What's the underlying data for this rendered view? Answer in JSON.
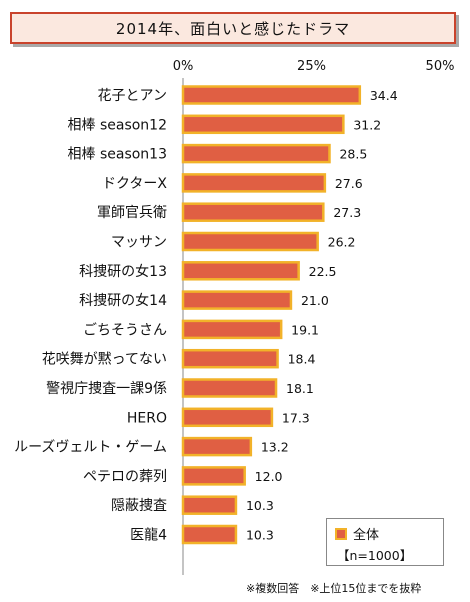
{
  "title": "2014年、面白いと感じたドラマ",
  "legend": {
    "series_name": "全体",
    "sample_size": "【n=1000】"
  },
  "footnote": "※複数回答　※上位15位までを抜粋",
  "colors": {
    "bar_fill": "#e05f43",
    "bar_border": "#f2b229",
    "title_border": "#c9432c",
    "title_fill": "#fbe8df"
  },
  "chart_data": {
    "type": "bar",
    "orientation": "horizontal",
    "title": "2014年、面白いと感じたドラマ",
    "categories": [
      "花子とアン",
      "相棒 season12",
      "相棒 season13",
      "ドクターX",
      "軍師官兵衛",
      "マッサン",
      "科捜研の女13",
      "科捜研の女14",
      "ごちそうさん",
      "花咲舞が黙ってない",
      "警視庁捜査一課9係",
      "HERO",
      "ルーズヴェルト・ゲーム",
      "ペテロの葬列",
      "隠蔽捜査",
      "医龍4"
    ],
    "series": [
      {
        "name": "全体",
        "values": [
          34.4,
          31.2,
          28.5,
          27.6,
          27.3,
          26.2,
          22.5,
          21.0,
          19.1,
          18.4,
          18.1,
          17.3,
          13.2,
          12.0,
          10.3,
          10.3
        ]
      }
    ],
    "value_labels": [
      "34.4",
      "31.2",
      "28.5",
      "27.6",
      "27.3",
      "26.2",
      "22.5",
      "21.0",
      "19.1",
      "18.4",
      "18.1",
      "17.3",
      "13.2",
      "12.0",
      "10.3",
      "10.3"
    ],
    "xlim": [
      0,
      50
    ],
    "xticks": [
      0,
      25,
      50
    ],
    "xtick_labels": [
      "0%",
      "25%",
      "50%"
    ],
    "grid": false,
    "legend_position": "bottom-right"
  }
}
